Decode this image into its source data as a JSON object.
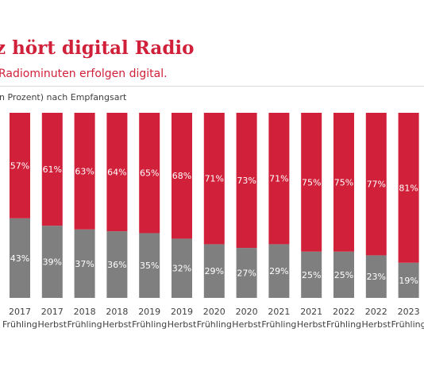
{
  "header": {
    "title": "z hört digital Radio",
    "subtitle": "Radiominuten erfolgen digital.",
    "note": "n Prozent) nach Empfangsart"
  },
  "colors": {
    "digital": "#d0203a",
    "analog": "#7f7f7f"
  },
  "chart_data": {
    "type": "bar",
    "stacked": true,
    "categories": [
      [
        "2017",
        "Frühling"
      ],
      [
        "2017",
        "Herbst"
      ],
      [
        "2018",
        "Frühling"
      ],
      [
        "2018",
        "Herbst"
      ],
      [
        "2019",
        "Frühling"
      ],
      [
        "2019",
        "Herbst"
      ],
      [
        "2020",
        "Frühling"
      ],
      [
        "2020",
        "Herbst"
      ],
      [
        "2021",
        "Frühling"
      ],
      [
        "2021",
        "Herbst"
      ],
      [
        "2022",
        "Frühling"
      ],
      [
        "2022",
        "Herbst"
      ],
      [
        "2023",
        "Frühling"
      ]
    ],
    "series": [
      {
        "values": [
          43,
          39,
          37,
          36,
          35,
          32,
          29,
          27,
          29,
          25,
          25,
          23,
          19
        ],
        "color": "#7f7f7f"
      },
      {
        "values": [
          57,
          61,
          63,
          64,
          65,
          68,
          71,
          73,
          71,
          75,
          75,
          77,
          81
        ],
        "color": "#d0203a"
      }
    ],
    "value_suffix": "%",
    "ylim": [
      0,
      100
    ],
    "grid": false,
    "legend": "none"
  }
}
